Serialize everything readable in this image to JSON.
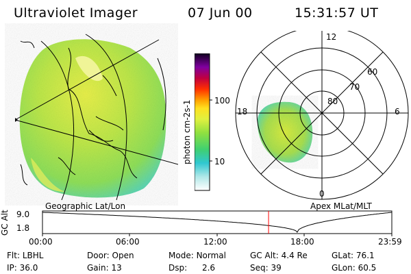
{
  "header": {
    "instrument": "Ultraviolet Imager",
    "date": "07 Jun 00",
    "time": "15:31:57 UT"
  },
  "colorbar": {
    "unit_label": "photon cm-2s-1",
    "ticks": [
      "100",
      "10"
    ]
  },
  "polar_plot": {
    "title": "Apex MLat/MLT",
    "lat_labels": [
      "60",
      "70",
      "80"
    ],
    "mlt_labels": [
      "12",
      "18",
      "6",
      "0"
    ]
  },
  "geo_plot": {
    "title": "Geographic Lat/Lon"
  },
  "timeline": {
    "y_label": "GC Alt",
    "y_ticks": [
      "9.0",
      "1.8"
    ],
    "x_ticks": [
      "00:00",
      "06:00",
      "12:00",
      "18:00",
      "23:59"
    ],
    "marker_time": "15:31:57",
    "marker_color": "#ff0000"
  },
  "info": {
    "flt": {
      "label": "Flt:",
      "value": "LBHL"
    },
    "ip": {
      "label": "IP:",
      "value": "36.0"
    },
    "door": {
      "label": "Door:",
      "value": "Open"
    },
    "gain": {
      "label": "Gain:",
      "value": "13"
    },
    "mode": {
      "label": "Mode:",
      "value": "Normal"
    },
    "dsp": {
      "label": "Dsp:",
      "value": "2.6"
    },
    "gcalt": {
      "label": "GC Alt:",
      "value": "4.4 Re"
    },
    "seq": {
      "label": "Seq:",
      "value": "39"
    },
    "glat": {
      "label": "GLat:",
      "value": "76.1"
    },
    "glon": {
      "label": "GLon:",
      "value": "60.5"
    }
  }
}
